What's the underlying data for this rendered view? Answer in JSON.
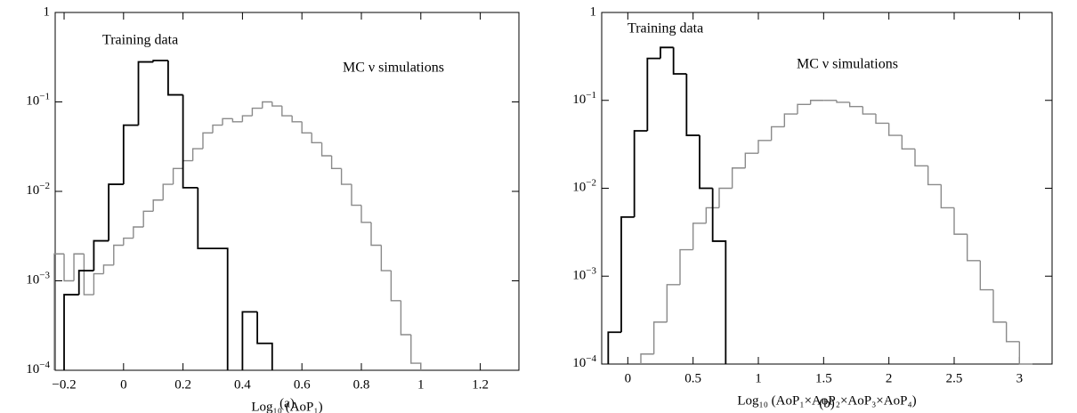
{
  "chart_data": [
    {
      "type": "histogram",
      "xlabel": "Log₁₀ (AoP₁)",
      "caption": "(a)",
      "xlim": [
        -0.23,
        1.33
      ],
      "ylim": [
        0.0001,
        1
      ],
      "log_y": true,
      "xticks": [
        {
          "value": -0.2,
          "label": "−0.2"
        },
        0,
        0.2,
        0.4,
        0.6,
        0.8,
        1,
        1.2
      ],
      "yticks": [
        {
          "value": 0.0001,
          "label": "10^−4"
        },
        {
          "value": 0.001,
          "label": "10^−3"
        },
        {
          "value": 0.01,
          "label": "10^−2"
        },
        {
          "value": 0.1,
          "label": "10^−1"
        },
        1
      ],
      "series": [
        {
          "name": "Training data",
          "color": "#000000",
          "bins": [
            -0.2,
            -0.15,
            -0.1,
            -0.05,
            0,
            0.05,
            0.1,
            0.15,
            0.2,
            0.25,
            0.3,
            0.35,
            0.4,
            0.45,
            0.5
          ],
          "values": [
            0.0007,
            0.0013,
            0.0028,
            0.012,
            0.055,
            0.28,
            0.29,
            0.12,
            0.011,
            0.0023,
            0.0023,
            null,
            0.00045,
            0.0002
          ]
        },
        {
          "name": "MC ν simulations",
          "color": "#8a8a8a",
          "bins": [
            -0.233,
            -0.2,
            -0.167,
            -0.133,
            -0.1,
            -0.067,
            -0.033,
            0,
            0.033,
            0.067,
            0.1,
            0.133,
            0.167,
            0.2,
            0.233,
            0.267,
            0.3,
            0.333,
            0.367,
            0.4,
            0.433,
            0.467,
            0.5,
            0.533,
            0.567,
            0.6,
            0.633,
            0.667,
            0.7,
            0.733,
            0.767,
            0.8,
            0.833,
            0.867,
            0.9,
            0.933,
            0.967,
            1.0
          ],
          "values": [
            0.002,
            0.001,
            0.002,
            0.0007,
            0.0012,
            0.0015,
            0.0025,
            0.003,
            0.004,
            0.006,
            0.008,
            0.012,
            0.018,
            0.022,
            0.03,
            0.045,
            0.055,
            0.065,
            0.06,
            0.07,
            0.085,
            0.1,
            0.09,
            0.07,
            0.06,
            0.045,
            0.035,
            0.025,
            0.018,
            0.012,
            0.007,
            0.0045,
            0.0025,
            0.0013,
            0.0006,
            0.00025,
            0.00012
          ]
        }
      ]
    },
    {
      "type": "histogram",
      "xlabel": "Log₁₀ (AoP₁×AoP₂×AoP₃×AoP₄)",
      "caption": "(b)",
      "xlim": [
        -0.2,
        3.25
      ],
      "ylim": [
        0.0001,
        1
      ],
      "log_y": true,
      "xticks": [
        0,
        0.5,
        1,
        1.5,
        2,
        2.5,
        3
      ],
      "yticks": [
        {
          "value": 0.0001,
          "label": "10^−4"
        },
        {
          "value": 0.001,
          "label": "10^−3"
        },
        {
          "value": 0.01,
          "label": "10^−2"
        },
        {
          "value": 0.1,
          "label": "10^−1"
        },
        1
      ],
      "series": [
        {
          "name": "Training data",
          "color": "#000000",
          "bins": [
            -0.15,
            -0.05,
            0.05,
            0.15,
            0.25,
            0.35,
            0.45,
            0.55,
            0.65,
            0.75
          ],
          "values": [
            0.00023,
            0.0047,
            0.045,
            0.3,
            0.4,
            0.2,
            0.04,
            0.01,
            0.0025
          ]
        },
        {
          "name": "MC ν simulations",
          "color": "#8a8a8a",
          "bins": [
            0.1,
            0.2,
            0.3,
            0.4,
            0.5,
            0.6,
            0.7,
            0.8,
            0.9,
            1.0,
            1.1,
            1.2,
            1.3,
            1.4,
            1.5,
            1.6,
            1.7,
            1.8,
            1.9,
            2.0,
            2.1,
            2.2,
            2.3,
            2.4,
            2.5,
            2.6,
            2.7,
            2.8,
            2.9,
            3.0,
            3.1
          ],
          "values": [
            0.00013,
            0.0003,
            0.0008,
            0.002,
            0.004,
            0.006,
            0.01,
            0.017,
            0.025,
            0.035,
            0.05,
            0.07,
            0.09,
            0.1,
            0.1,
            0.095,
            0.085,
            0.07,
            0.055,
            0.04,
            0.028,
            0.018,
            0.011,
            0.006,
            0.003,
            0.0015,
            0.0007,
            0.0003,
            0.00018,
            0.0001
          ]
        }
      ]
    }
  ]
}
